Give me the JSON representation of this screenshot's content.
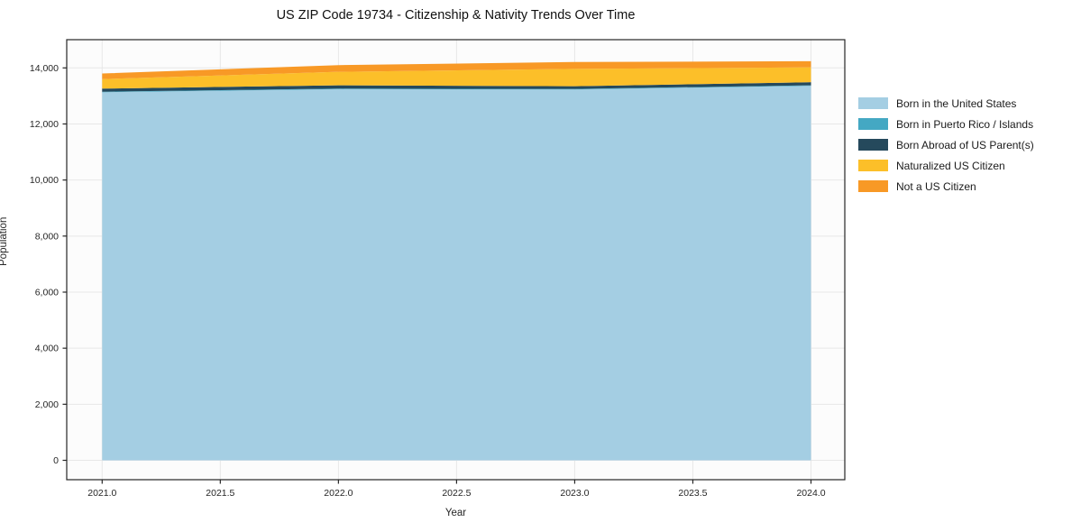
{
  "chart_data": {
    "type": "area",
    "stacked": true,
    "title": "US ZIP Code 19734 - Citizenship & Nativity Trends Over Time",
    "xlabel": "Year",
    "ylabel": "Population",
    "x": [
      2021,
      2022,
      2023,
      2024
    ],
    "xlim": [
      2021,
      2024
    ],
    "ylim": [
      0,
      14000
    ],
    "grid": true,
    "legend_position": "right-outside",
    "xtick_values": [
      2021.0,
      2021.5,
      2022.0,
      2022.5,
      2023.0,
      2023.5,
      2024.0
    ],
    "xtick_labels": [
      "2021.0",
      "2021.5",
      "2022.0",
      "2022.5",
      "2023.0",
      "2023.5",
      "2024.0"
    ],
    "ytick_values": [
      0,
      2000,
      4000,
      6000,
      8000,
      10000,
      12000,
      14000
    ],
    "ytick_labels": [
      "0",
      "2,000",
      "4,000",
      "6,000",
      "8,000",
      "10,000",
      "12,000",
      "14,000"
    ],
    "series": [
      {
        "name": "Born in the United States",
        "color": "#a4cee3",
        "values": [
          13130,
          13240,
          13230,
          13360
        ]
      },
      {
        "name": "Born in Puerto Rico / Islands",
        "color": "#44a8c3",
        "values": [
          20,
          20,
          20,
          20
        ]
      },
      {
        "name": "Born Abroad of US Parent(s)",
        "color": "#25495c",
        "values": [
          110,
          120,
          95,
          110
        ]
      },
      {
        "name": "Naturalized US Citizen",
        "color": "#fcbf29",
        "values": [
          340,
          480,
          620,
          530
        ]
      },
      {
        "name": "Not a US Citizen",
        "color": "#f89926",
        "values": [
          200,
          240,
          245,
          220
        ]
      }
    ],
    "stacked_totals": [
      13800,
      14100,
      14210,
      14240
    ],
    "colors": {
      "grid": "#e7e7e7",
      "spine": "#262626",
      "plot_background": "#fcfcfc",
      "figure_background": "#ffffff"
    }
  }
}
